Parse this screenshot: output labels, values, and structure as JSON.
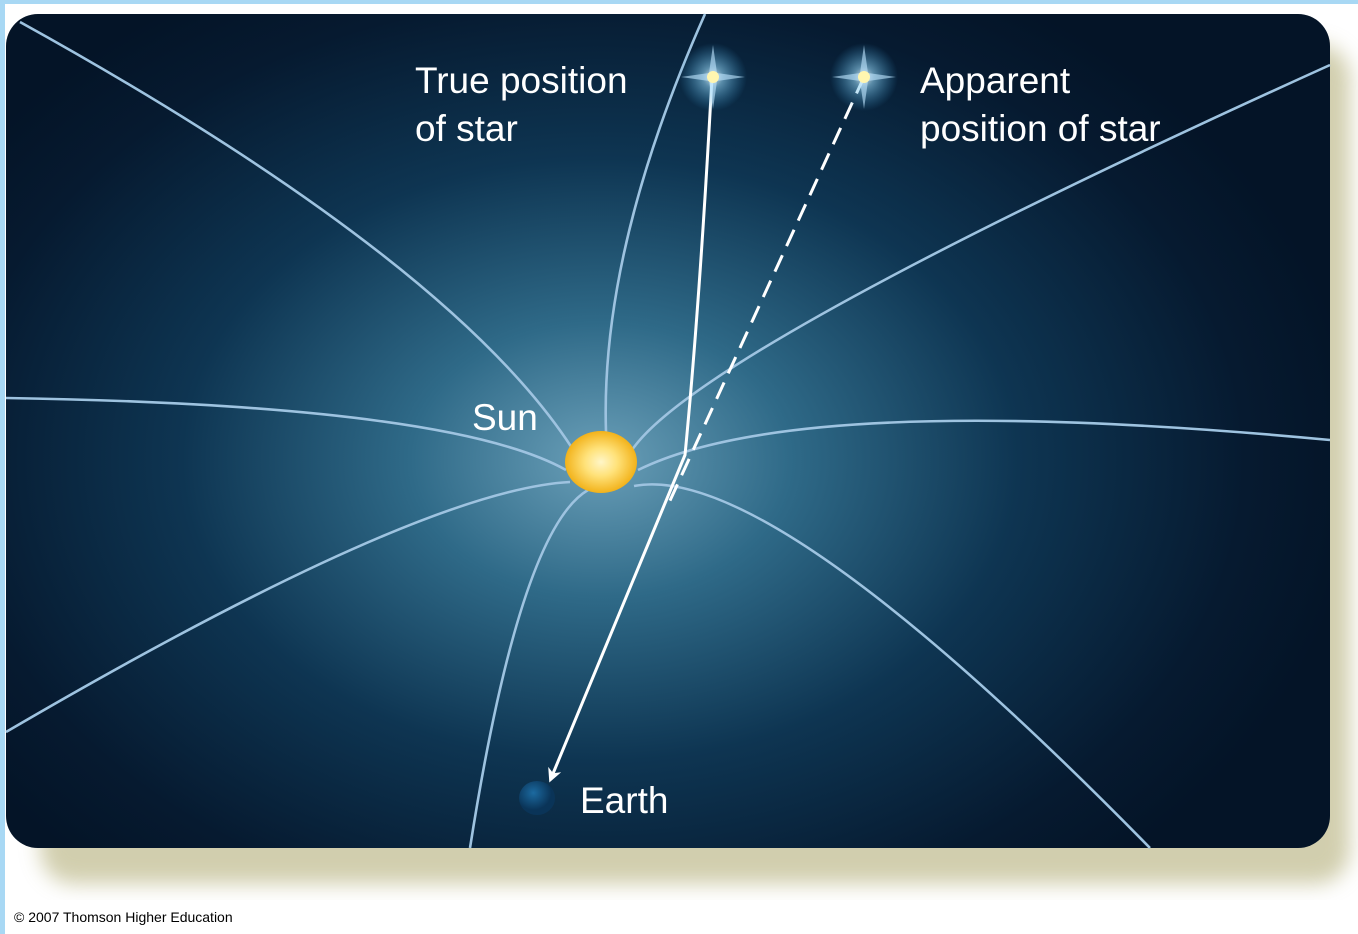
{
  "diagram": {
    "labels": {
      "true_position": [
        "True position",
        "of star"
      ],
      "apparent_position": [
        "Apparent",
        "position of star"
      ],
      "sun": "Sun",
      "earth": "Earth"
    },
    "copyright": "© 2007 Thomson Higher Education"
  }
}
